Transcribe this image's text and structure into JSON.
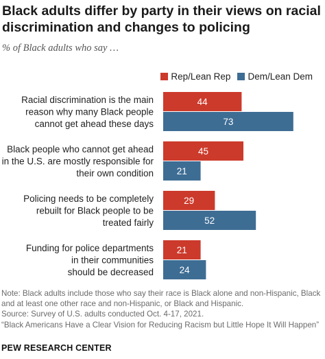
{
  "title": "Black adults differ by party in their views on racial discrimination and changes to policing",
  "subtitle": "% of Black adults who say …",
  "legend": {
    "rep": "Rep/Lean Rep",
    "dem": "Dem/Lean Dem"
  },
  "colors": {
    "rep": "#cc3a2b",
    "dem": "#3e6d94"
  },
  "chart_data": {
    "type": "bar",
    "orientation": "horizontal",
    "categories": [
      [
        "Racial discrimination is the main",
        "reason why many Black people",
        "cannot get ahead these days"
      ],
      [
        "Black people who cannot get ahead",
        "in the U.S. are mostly responsible for",
        "their own condition"
      ],
      [
        "Policing needs to be completely",
        "rebuilt for Black people to be",
        "treated fairly"
      ],
      [
        "Funding for police departments",
        "in their communities",
        "should be decreased"
      ]
    ],
    "series": [
      {
        "name": "Rep/Lean Rep",
        "values": [
          44,
          45,
          29,
          21
        ]
      },
      {
        "name": "Dem/Lean Dem",
        "values": [
          73,
          21,
          52,
          24
        ]
      }
    ],
    "xlim": [
      0,
      100
    ],
    "grid": false,
    "legend_position": "top-right"
  },
  "footer": {
    "note1": "Note: Black adults include those who say their race is Black alone and non-Hispanic, Black",
    "note2": "and at least one other race and non-Hispanic, or Black and Hispanic.",
    "source": "Source: Survey of U.S. adults conducted Oct. 4-17, 2021.",
    "report": "“Black Americans Have a Clear Vision for Reducing Racism but Little Hope It Will Happen”",
    "brand": "PEW RESEARCH CENTER"
  }
}
